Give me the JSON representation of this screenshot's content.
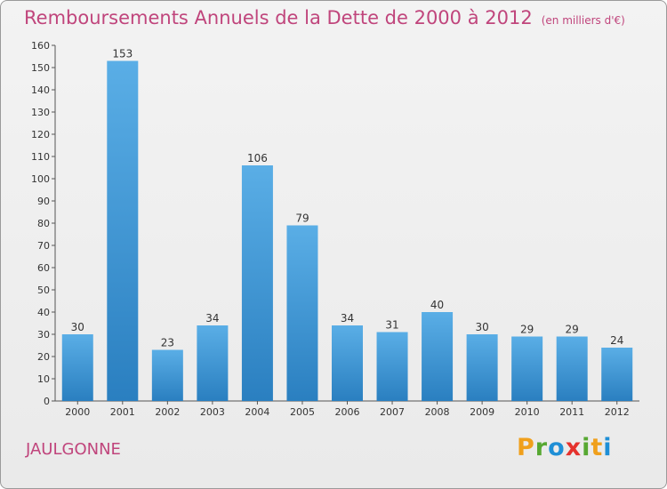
{
  "header": {
    "title": "Remboursements Annuels de la Dette de 2000 à 2012",
    "unit": "(en milliers d'€)"
  },
  "footer": {
    "commune": "JAULGONNE",
    "brand_letters": [
      "P",
      "r",
      "o",
      "x",
      "i",
      "t",
      "i"
    ],
    "brand_colors": [
      "#f0a01c",
      "#57a832",
      "#1f8fd6",
      "#e5322d",
      "#57a832",
      "#f0a01c",
      "#1f8fd6"
    ]
  },
  "chart_data": {
    "type": "bar",
    "title": "Remboursements Annuels de la Dette de 2000 à 2012",
    "xlabel": "",
    "ylabel": "",
    "categories": [
      "2000",
      "2001",
      "2002",
      "2003",
      "2004",
      "2005",
      "2006",
      "2007",
      "2008",
      "2009",
      "2010",
      "2011",
      "2012"
    ],
    "values": [
      30,
      153,
      23,
      34,
      106,
      79,
      34,
      31,
      40,
      30,
      29,
      29,
      24
    ],
    "ylim": [
      0,
      160
    ],
    "yticks": [
      0,
      10,
      20,
      30,
      40,
      50,
      60,
      70,
      80,
      90,
      100,
      110,
      120,
      130,
      140,
      150,
      160
    ],
    "grid": false,
    "bar_color_top": "#5aaee6",
    "bar_color_bottom": "#2a7fc0"
  }
}
